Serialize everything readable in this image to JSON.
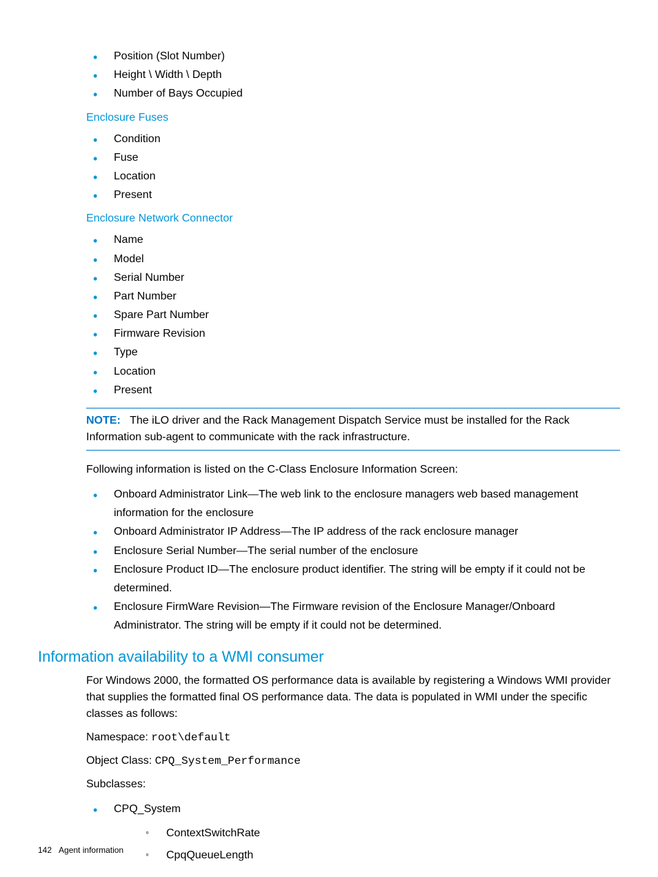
{
  "colors": {
    "accent": "#0096d6",
    "note_border": "#0072c6",
    "text": "#000000",
    "background": "#ffffff"
  },
  "typography": {
    "body_fontsize": 16,
    "heading_fontsize": 22,
    "footer_fontsize": 12,
    "font_family": "Arial"
  },
  "top_bullets": {
    "items": [
      "Position (Slot Number)",
      "Height \\ Width \\ Depth",
      "Number of Bays Occupied"
    ]
  },
  "sections": [
    {
      "heading": "Enclosure Fuses",
      "items": [
        "Condition",
        "Fuse",
        "Location",
        "Present"
      ]
    },
    {
      "heading": "Enclosure Network Connector",
      "items": [
        "Name",
        "Model",
        "Serial Number",
        "Part Number",
        "Spare Part Number",
        "Firmware Revision",
        "Type",
        "Location",
        "Present"
      ]
    }
  ],
  "note": {
    "label": "NOTE:",
    "text": "The iLO driver and the Rack Management Dispatch Service must be installed for the Rack Information sub-agent to communicate with the rack infrastructure."
  },
  "following_para": "Following information is listed on the C-Class Enclosure Information Screen:",
  "cclass_items": [
    "Onboard Administrator Link—The web link to the enclosure managers web based management information for the enclosure",
    "Onboard Administrator IP Address—The IP address of the rack enclosure manager",
    "Enclosure Serial Number—The serial number of the enclosure",
    "Enclosure Product ID—The enclosure product identifier. The string will be empty if it could not be determined.",
    "Enclosure FirmWare Revision—The Firmware revision of the Enclosure Manager/Onboard Administrator. The string will be empty if it could not be determined."
  ],
  "wmi": {
    "heading": "Information availability to a WMI consumer",
    "para": "For Windows 2000, the formatted OS performance data is available by registering a Windows WMI provider that supplies the formatted final OS performance data. The data is populated in WMI under the specific classes as follows:",
    "namespace_label": "Namespace: ",
    "namespace_value": "root\\default",
    "objectclass_label": "Object Class: ",
    "objectclass_value": "CPQ_System_Performance",
    "subclasses_label": "Subclasses:",
    "subclasses": [
      {
        "name": "CPQ_System",
        "children": [
          "ContextSwitchRate",
          "CpqQueueLength"
        ]
      }
    ]
  },
  "footer": {
    "page": "142",
    "title": "Agent information"
  }
}
